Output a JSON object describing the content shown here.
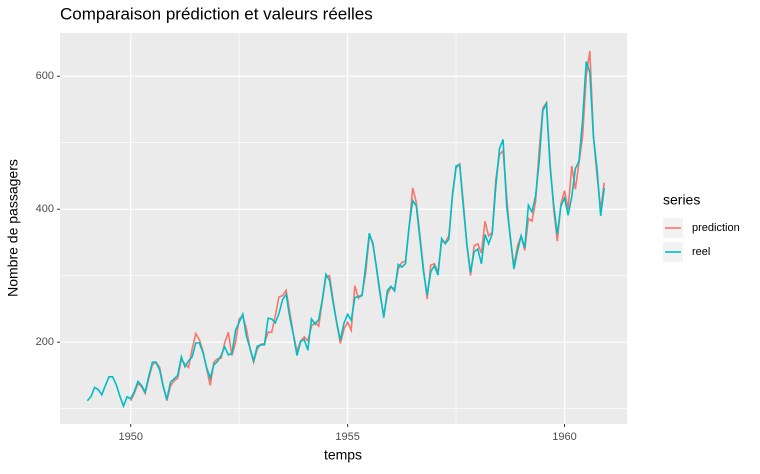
{
  "chart_data": {
    "type": "line",
    "title": "Comparaison prédiction et valeurs réelles",
    "x_label": "temps",
    "y_label": "Nombre de passagers",
    "legend_title": "series",
    "xlim": [
      1948.37,
      1961.44
    ],
    "ylim": [
      77,
      665
    ],
    "xticks": [
      1950,
      1955,
      1960
    ],
    "yticks": [
      200,
      400,
      600
    ],
    "grid": true,
    "x": [
      1949,
      1949.083,
      1949.167,
      1949.25,
      1949.333,
      1949.417,
      1949.5,
      1949.583,
      1949.667,
      1949.75,
      1949.833,
      1949.917,
      1950,
      1950.083,
      1950.167,
      1950.25,
      1950.333,
      1950.417,
      1950.5,
      1950.583,
      1950.667,
      1950.75,
      1950.833,
      1950.917,
      1951,
      1951.083,
      1951.167,
      1951.25,
      1951.333,
      1951.417,
      1951.5,
      1951.583,
      1951.667,
      1951.75,
      1951.833,
      1951.917,
      1952,
      1952.083,
      1952.167,
      1952.25,
      1952.333,
      1952.417,
      1952.5,
      1952.583,
      1952.667,
      1952.75,
      1952.833,
      1952.917,
      1953,
      1953.083,
      1953.167,
      1953.25,
      1953.333,
      1953.417,
      1953.5,
      1953.583,
      1953.667,
      1953.75,
      1953.833,
      1953.917,
      1954,
      1954.083,
      1954.167,
      1954.25,
      1954.333,
      1954.417,
      1954.5,
      1954.583,
      1954.667,
      1954.75,
      1954.833,
      1954.917,
      1955,
      1955.083,
      1955.167,
      1955.25,
      1955.333,
      1955.417,
      1955.5,
      1955.583,
      1955.667,
      1955.75,
      1955.833,
      1955.917,
      1956,
      1956.083,
      1956.167,
      1956.25,
      1956.333,
      1956.417,
      1956.5,
      1956.583,
      1956.667,
      1956.75,
      1956.833,
      1956.917,
      1957,
      1957.083,
      1957.167,
      1957.25,
      1957.333,
      1957.417,
      1957.5,
      1957.583,
      1957.667,
      1957.75,
      1957.833,
      1957.917,
      1958,
      1958.083,
      1958.167,
      1958.25,
      1958.333,
      1958.417,
      1958.5,
      1958.583,
      1958.667,
      1958.75,
      1958.833,
      1958.917,
      1959,
      1959.083,
      1959.167,
      1959.25,
      1959.333,
      1959.417,
      1959.5,
      1959.583,
      1959.667,
      1959.75,
      1959.833,
      1959.917,
      1960,
      1960.083,
      1960.167,
      1960.25,
      1960.333,
      1960.417,
      1960.5,
      1960.583,
      1960.667,
      1960.75,
      1960.833,
      1960.917
    ],
    "series": [
      {
        "name": "prediction",
        "color": "#F8766D",
        "values": [
          null,
          null,
          null,
          null,
          null,
          null,
          null,
          null,
          null,
          null,
          null,
          null,
          112,
          123,
          138,
          133,
          123,
          146,
          166,
          170,
          162,
          134,
          112,
          134,
          142,
          146,
          174,
          167,
          162,
          190,
          213,
          204,
          186,
          160,
          135,
          170,
          175,
          176,
          199,
          215,
          180,
          200,
          235,
          240,
          220,
          190,
          170,
          190,
          197,
          198,
          215,
          215,
          240,
          268,
          270,
          278,
          245,
          212,
          186,
          202,
          208,
          202,
          224,
          230,
          224,
          262,
          298,
          300,
          263,
          228,
          198,
          220,
          230,
          218,
          285,
          266,
          272,
          305,
          360,
          350,
          310,
          270,
          240,
          272,
          283,
          280,
          310,
          320,
          322,
          372,
          432,
          410,
          360,
          310,
          265,
          316,
          318,
          305,
          352,
          350,
          360,
          420,
          462,
          468,
          410,
          345,
          300,
          345,
          348,
          334,
          382,
          360,
          365,
          445,
          482,
          488,
          418,
          355,
          315,
          345,
          360,
          338,
          386,
          382,
          412,
          490,
          552,
          560,
          470,
          400,
          352,
          408,
          428,
          400,
          465,
          430,
          470,
          510,
          600,
          638,
          510,
          450,
          400,
          440
        ]
      },
      {
        "name": "reel",
        "color": "#00BFC4",
        "values": [
          112,
          118,
          132,
          129,
          121,
          135,
          148,
          148,
          136,
          119,
          104,
          118,
          115,
          126,
          141,
          135,
          125,
          149,
          170,
          170,
          158,
          133,
          114,
          140,
          145,
          150,
          178,
          163,
          172,
          178,
          199,
          199,
          184,
          162,
          146,
          166,
          171,
          180,
          193,
          181,
          183,
          218,
          230,
          242,
          209,
          191,
          172,
          194,
          196,
          196,
          236,
          235,
          229,
          243,
          264,
          272,
          237,
          211,
          180,
          201,
          204,
          188,
          235,
          227,
          234,
          264,
          302,
          293,
          259,
          229,
          203,
          229,
          242,
          233,
          267,
          269,
          270,
          315,
          364,
          347,
          312,
          274,
          237,
          278,
          284,
          277,
          317,
          313,
          318,
          374,
          413,
          405,
          355,
          306,
          271,
          306,
          315,
          301,
          356,
          348,
          355,
          422,
          465,
          467,
          404,
          347,
          305,
          336,
          340,
          318,
          362,
          348,
          363,
          435,
          491,
          505,
          404,
          359,
          310,
          337,
          360,
          342,
          406,
          396,
          420,
          472,
          548,
          559,
          463,
          407,
          362,
          405,
          417,
          391,
          419,
          461,
          472,
          535,
          622,
          606,
          508,
          461,
          390,
          432
        ]
      }
    ]
  }
}
